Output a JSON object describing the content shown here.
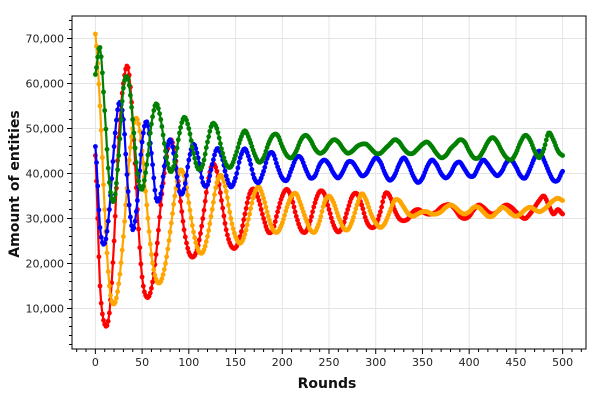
{
  "chart_data": {
    "type": "scatter",
    "title": "",
    "xlabel": "Rounds",
    "ylabel": "Amount of entities",
    "xlim": [
      -25,
      525
    ],
    "ylim": [
      1000,
      75000
    ],
    "x_ticks": [
      0,
      50,
      100,
      150,
      200,
      250,
      300,
      350,
      400,
      450,
      500
    ],
    "x_tick_labels": [
      "0",
      "50",
      "100",
      "150",
      "200",
      "250",
      "300",
      "350",
      "400",
      "450",
      "500"
    ],
    "y_ticks": [
      10000,
      20000,
      30000,
      40000,
      50000,
      60000,
      70000
    ],
    "y_tick_labels": [
      "10,000",
      "20,000",
      "30,000",
      "40,000",
      "50,000",
      "60,000",
      "70,000"
    ],
    "grid": true,
    "series": [
      {
        "color": "#ff0000",
        "x": [
          0,
          5,
          10,
          15,
          20,
          25,
          30,
          35,
          40,
          45,
          50,
          55,
          60,
          65,
          70,
          75,
          80,
          85,
          90,
          95,
          100,
          105,
          110,
          115,
          120,
          125,
          130,
          135,
          140,
          145,
          150,
          155,
          160,
          165,
          170,
          175,
          180,
          185,
          190,
          195,
          200,
          205,
          210,
          215,
          220,
          225,
          230,
          235,
          240,
          245,
          250,
          255,
          260,
          265,
          270,
          275,
          280,
          285,
          290,
          295,
          300,
          305,
          310,
          315,
          320,
          325,
          330,
          335,
          340,
          345,
          350,
          355,
          360,
          365,
          370,
          375,
          380,
          385,
          390,
          395,
          400,
          405,
          410,
          415,
          420,
          425,
          430,
          435,
          440,
          445,
          450,
          455,
          460,
          465,
          470,
          475,
          480,
          485,
          490,
          495,
          500
        ],
        "y": [
          44000,
          15000,
          6500,
          9000,
          25000,
          48000,
          60000,
          63500,
          52000,
          32000,
          17000,
          12500,
          14500,
          22000,
          33000,
          42000,
          47500,
          44500,
          36000,
          27500,
          22500,
          21500,
          24000,
          30000,
          37500,
          42000,
          40500,
          34000,
          27500,
          24000,
          23500,
          26000,
          31000,
          35500,
          36500,
          34000,
          30000,
          27000,
          27500,
          31500,
          35000,
          36500,
          34500,
          30500,
          27500,
          27000,
          29500,
          33500,
          36000,
          35500,
          32000,
          28500,
          27000,
          28500,
          32000,
          35000,
          35500,
          33000,
          29500,
          28000,
          28500,
          31500,
          35500,
          35000,
          32000,
          30000,
          29500,
          30000,
          31500,
          32000,
          31500,
          31000,
          31000,
          31500,
          32500,
          33000,
          33000,
          32000,
          30500,
          30000,
          30500,
          32000,
          33000,
          32500,
          31500,
          31000,
          31500,
          32500,
          33000,
          32500,
          31500,
          30500,
          30000,
          31000,
          32500,
          34000,
          35000,
          33000,
          31000,
          32000,
          31000
        ]
      },
      {
        "color": "#ffa500",
        "x": [
          0,
          5,
          10,
          15,
          20,
          25,
          30,
          35,
          40,
          45,
          50,
          55,
          60,
          65,
          70,
          75,
          80,
          85,
          90,
          95,
          100,
          105,
          110,
          115,
          120,
          125,
          130,
          135,
          140,
          145,
          150,
          155,
          160,
          165,
          170,
          175,
          180,
          185,
          190,
          195,
          200,
          205,
          210,
          215,
          220,
          225,
          230,
          235,
          240,
          245,
          250,
          255,
          260,
          265,
          270,
          275,
          280,
          285,
          290,
          295,
          300,
          305,
          310,
          315,
          320,
          325,
          330,
          335,
          340,
          345,
          350,
          355,
          360,
          365,
          370,
          375,
          380,
          385,
          390,
          395,
          400,
          405,
          410,
          415,
          420,
          425,
          430,
          435,
          440,
          445,
          450,
          455,
          460,
          465,
          470,
          475,
          480,
          485,
          490,
          495,
          500
        ],
        "y": [
          71000,
          55000,
          32000,
          15000,
          11000,
          15500,
          26000,
          40000,
          50000,
          52000,
          45000,
          33000,
          22000,
          16500,
          16000,
          20000,
          27000,
          35000,
          40500,
          39500,
          33500,
          27000,
          23000,
          22500,
          26000,
          32000,
          38000,
          39500,
          36000,
          30000,
          26000,
          24500,
          26500,
          31000,
          35500,
          37000,
          34500,
          30500,
          27500,
          27000,
          29000,
          32500,
          35000,
          35500,
          33000,
          30000,
          27500,
          27000,
          29500,
          33500,
          35000,
          33500,
          30500,
          28000,
          27500,
          29500,
          33000,
          35500,
          34000,
          31000,
          29000,
          28000,
          29000,
          31500,
          34000,
          34000,
          32500,
          31000,
          30500,
          31000,
          31500,
          31500,
          31000,
          31000,
          31500,
          32500,
          33000,
          32500,
          31500,
          31000,
          31500,
          32500,
          32500,
          31500,
          30500,
          30500,
          31500,
          32500,
          32000,
          31000,
          30500,
          31000,
          32000,
          32500,
          32000,
          31500,
          32000,
          33000,
          34000,
          34500,
          34000
        ]
      },
      {
        "color": "#0000ff",
        "x": [
          0,
          5,
          10,
          15,
          20,
          25,
          30,
          35,
          40,
          45,
          50,
          55,
          60,
          65,
          70,
          75,
          80,
          85,
          90,
          95,
          100,
          105,
          110,
          115,
          120,
          125,
          130,
          135,
          140,
          145,
          150,
          155,
          160,
          165,
          170,
          175,
          180,
          185,
          190,
          195,
          200,
          205,
          210,
          215,
          220,
          225,
          230,
          235,
          240,
          245,
          250,
          255,
          260,
          265,
          270,
          275,
          280,
          285,
          290,
          295,
          300,
          305,
          310,
          315,
          320,
          325,
          330,
          335,
          340,
          345,
          350,
          355,
          360,
          365,
          370,
          375,
          380,
          385,
          390,
          395,
          400,
          405,
          410,
          415,
          420,
          425,
          430,
          435,
          440,
          445,
          450,
          455,
          460,
          465,
          470,
          475,
          480,
          485,
          490,
          495,
          500
        ],
        "y": [
          46000,
          28000,
          24500,
          32000,
          46000,
          55500,
          52000,
          36000,
          27500,
          34000,
          47000,
          51500,
          44500,
          34500,
          35500,
          43500,
          47500,
          43000,
          36000,
          36500,
          43000,
          46500,
          43500,
          38000,
          37500,
          42000,
          45500,
          44000,
          39500,
          37000,
          39000,
          43500,
          45500,
          43000,
          39000,
          38000,
          40500,
          44000,
          44500,
          41500,
          39000,
          38500,
          41000,
          43500,
          43500,
          41000,
          39000,
          39500,
          42000,
          43000,
          42000,
          40000,
          39000,
          40500,
          42500,
          42500,
          41000,
          39500,
          40000,
          42000,
          43500,
          42500,
          40000,
          38500,
          39500,
          42000,
          43500,
          42000,
          39500,
          38000,
          39000,
          41500,
          43000,
          42000,
          40000,
          39000,
          40000,
          42000,
          42500,
          41000,
          39500,
          39500,
          41500,
          43000,
          42000,
          40500,
          39500,
          40500,
          42500,
          43000,
          41500,
          39500,
          39000,
          41000,
          43500,
          45000,
          43000,
          40500,
          38500,
          38500,
          40500
        ]
      },
      {
        "color": "#008000",
        "x": [
          0,
          5,
          10,
          15,
          20,
          25,
          30,
          35,
          40,
          45,
          50,
          55,
          60,
          65,
          70,
          75,
          80,
          85,
          90,
          95,
          100,
          105,
          110,
          115,
          120,
          125,
          130,
          135,
          140,
          145,
          150,
          155,
          160,
          165,
          170,
          175,
          180,
          185,
          190,
          195,
          200,
          205,
          210,
          215,
          220,
          225,
          230,
          235,
          240,
          245,
          250,
          255,
          260,
          265,
          270,
          275,
          280,
          285,
          290,
          295,
          300,
          305,
          310,
          315,
          320,
          325,
          330,
          335,
          340,
          345,
          350,
          355,
          360,
          365,
          370,
          375,
          380,
          385,
          390,
          395,
          400,
          405,
          410,
          415,
          420,
          425,
          430,
          435,
          440,
          445,
          450,
          455,
          460,
          465,
          470,
          475,
          480,
          485,
          490,
          495,
          500
        ],
        "y": [
          62000,
          68000,
          54000,
          38000,
          34000,
          44000,
          59000,
          61000,
          52000,
          40000,
          36500,
          42000,
          51000,
          55500,
          52000,
          45000,
          40500,
          42500,
          49000,
          52500,
          50000,
          44500,
          41000,
          42000,
          47000,
          51000,
          50000,
          45500,
          42000,
          41500,
          44000,
          47500,
          49500,
          47500,
          44500,
          42500,
          43500,
          46500,
          48500,
          48500,
          46000,
          44000,
          43500,
          45000,
          47500,
          48500,
          47500,
          45500,
          44500,
          45000,
          46500,
          47500,
          47000,
          45500,
          44500,
          45000,
          46000,
          46500,
          46500,
          45500,
          44500,
          44500,
          45500,
          46500,
          47500,
          47000,
          45500,
          44500,
          44500,
          45500,
          46500,
          47000,
          46000,
          44500,
          43500,
          44000,
          45500,
          46500,
          47500,
          47000,
          45000,
          43500,
          43500,
          45000,
          47000,
          48000,
          47000,
          45000,
          43500,
          43000,
          44500,
          47000,
          48500,
          47500,
          45000,
          43500,
          45500,
          49000,
          47500,
          45000,
          44000
        ]
      }
    ]
  }
}
